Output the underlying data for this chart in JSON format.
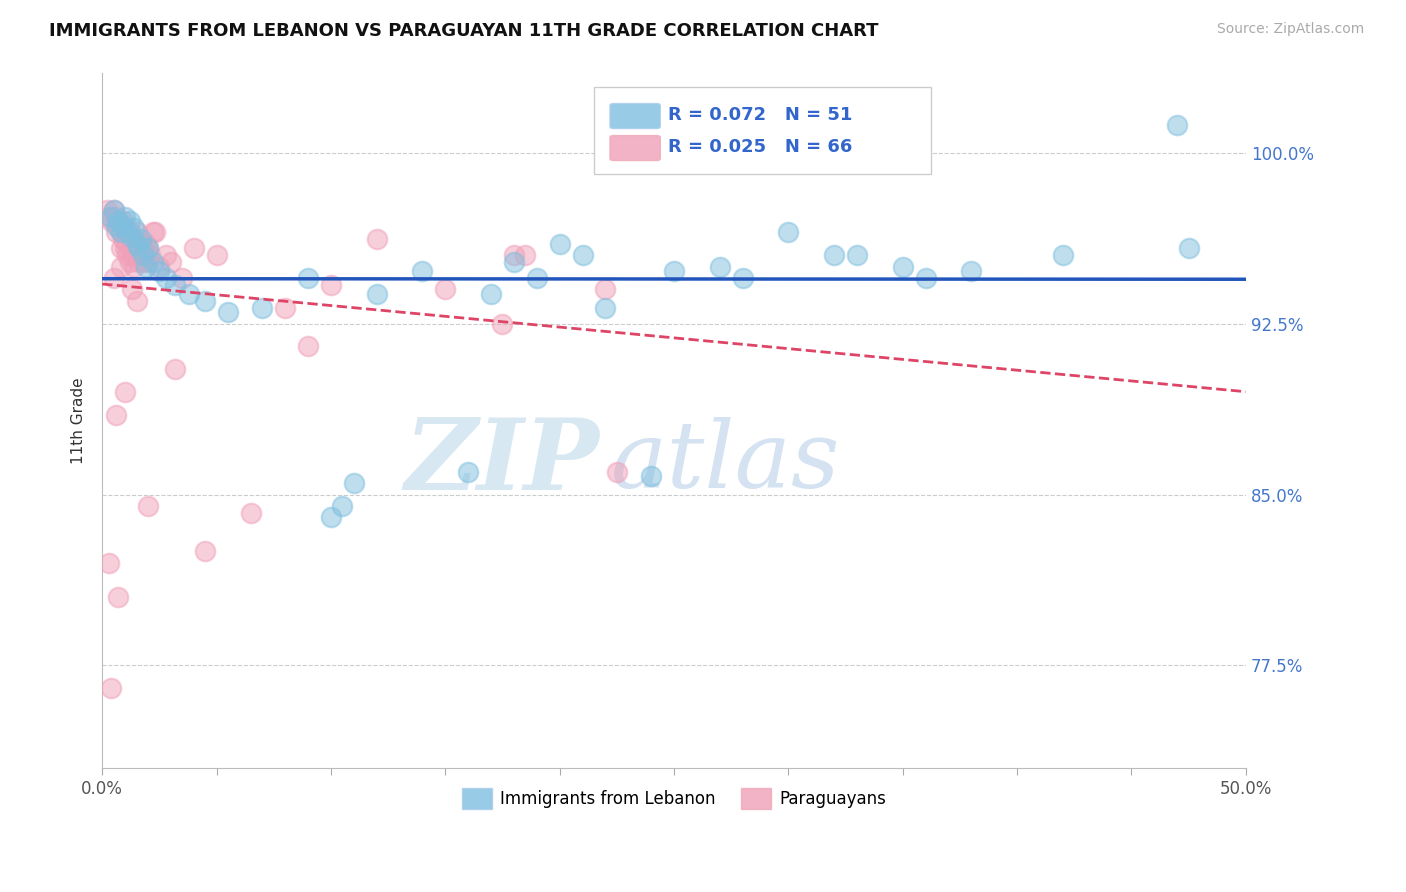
{
  "title": "IMMIGRANTS FROM LEBANON VS PARAGUAYAN 11TH GRADE CORRELATION CHART",
  "source": "Source: ZipAtlas.com",
  "ylabel": "11th Grade",
  "legend1_label": "R = 0.072   N = 51",
  "legend2_label": "R = 0.025   N = 66",
  "blue_color": "#7fbfdf",
  "pink_color": "#f0a0b8",
  "trend_blue_color": "#2255bb",
  "trend_pink_color": "#dd4466",
  "ytick_labels": [
    "77.5%",
    "85.0%",
    "92.5%",
    "100.0%"
  ],
  "ytick_values": [
    77.5,
    85.0,
    92.5,
    100.0
  ],
  "xlim": [
    0.0,
    50.0
  ],
  "ylim": [
    73.0,
    103.5
  ],
  "blue_x": [
    0.4,
    0.5,
    0.6,
    0.7,
    0.8,
    0.9,
    1.0,
    1.1,
    1.2,
    1.3,
    1.4,
    1.5,
    1.6,
    1.7,
    1.8,
    1.9,
    2.0,
    2.2,
    2.5,
    2.8,
    3.2,
    3.8,
    4.5,
    5.5,
    7.0,
    9.0,
    10.5,
    12.0,
    14.0,
    16.0,
    18.0,
    20.0,
    22.0,
    25.0,
    28.0,
    32.0,
    36.0,
    10.0,
    11.0,
    17.0,
    19.0,
    21.0,
    24.0,
    27.0,
    30.0,
    33.0,
    35.0,
    38.0,
    42.0,
    47.0,
    47.5
  ],
  "blue_y": [
    97.2,
    97.5,
    96.8,
    97.0,
    96.5,
    96.8,
    97.2,
    96.5,
    97.0,
    96.3,
    96.7,
    96.0,
    95.8,
    96.2,
    95.5,
    95.0,
    95.8,
    95.2,
    94.8,
    94.5,
    94.2,
    93.8,
    93.5,
    93.0,
    93.2,
    94.5,
    84.5,
    93.8,
    94.8,
    86.0,
    95.2,
    96.0,
    93.2,
    94.8,
    94.5,
    95.5,
    94.5,
    84.0,
    85.5,
    93.8,
    94.5,
    95.5,
    85.8,
    95.0,
    96.5,
    95.5,
    95.0,
    94.8,
    95.5,
    101.2,
    95.8
  ],
  "pink_x": [
    0.2,
    0.3,
    0.4,
    0.5,
    0.6,
    0.6,
    0.7,
    0.7,
    0.8,
    0.8,
    0.9,
    0.9,
    1.0,
    1.0,
    1.1,
    1.1,
    1.2,
    1.2,
    1.3,
    1.3,
    1.4,
    1.4,
    1.5,
    1.5,
    1.6,
    1.6,
    1.7,
    1.7,
    1.8,
    1.8,
    1.9,
    1.9,
    2.0,
    2.0,
    2.1,
    2.2,
    2.3,
    2.5,
    2.8,
    3.0,
    3.5,
    4.0,
    5.0,
    6.5,
    8.0,
    10.0,
    12.0,
    15.0,
    18.0,
    22.0,
    0.5,
    0.8,
    1.3,
    2.0,
    3.2,
    4.5,
    17.5,
    22.5,
    0.6,
    0.7,
    1.0,
    1.5,
    9.0,
    18.5,
    0.4,
    0.3
  ],
  "pink_y": [
    97.5,
    97.2,
    97.0,
    97.5,
    96.5,
    97.2,
    96.8,
    97.0,
    95.8,
    96.5,
    96.2,
    97.0,
    96.5,
    95.8,
    96.0,
    95.5,
    96.5,
    95.2,
    96.0,
    95.5,
    95.0,
    96.2,
    96.5,
    95.5,
    95.8,
    95.2,
    96.0,
    95.5,
    95.2,
    95.8,
    96.0,
    95.5,
    95.8,
    95.2,
    95.5,
    96.5,
    96.5,
    95.0,
    95.5,
    95.2,
    94.5,
    95.8,
    95.5,
    84.2,
    93.2,
    94.2,
    96.2,
    94.0,
    95.5,
    94.0,
    94.5,
    95.0,
    94.0,
    84.5,
    90.5,
    82.5,
    92.5,
    86.0,
    88.5,
    80.5,
    89.5,
    93.5,
    91.5,
    95.5,
    76.5,
    82.0
  ]
}
